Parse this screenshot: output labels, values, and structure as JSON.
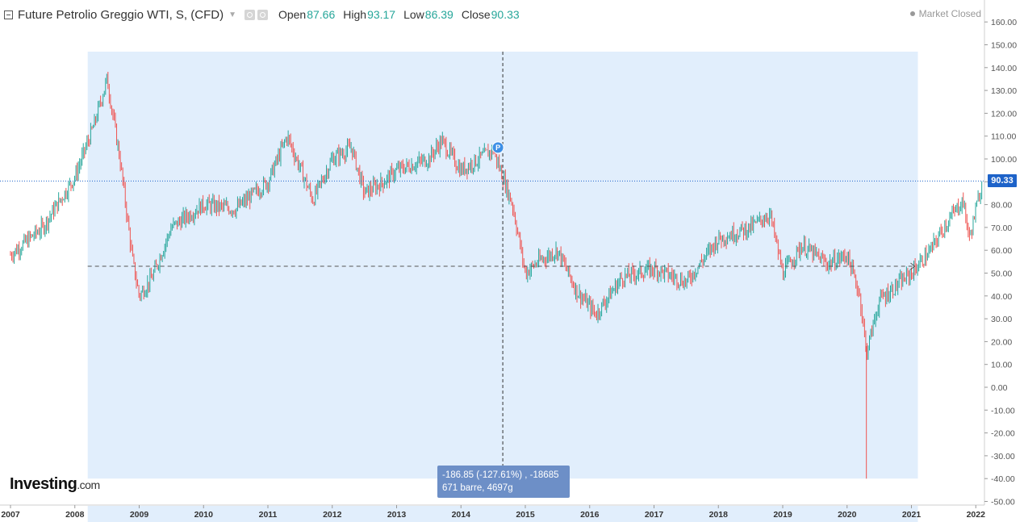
{
  "header": {
    "title": "Future Petrolio Greggio WTI, S, (CFD)",
    "ohlc": {
      "open_label": "Open",
      "open": "87.66",
      "high_label": "High",
      "high": "93.17",
      "low_label": "Low",
      "low": "86.39",
      "close_label": "Close",
      "close": "90.33"
    }
  },
  "market_status": "Market Closed",
  "logo": {
    "name": "Investing",
    "suffix": ".com"
  },
  "measure": {
    "line1": "-186.85 (-127.61%) , -18685",
    "line2": "671 barre, 4697g",
    "pin_label": "P"
  },
  "price_tag": "90.33",
  "colors": {
    "up": "#26a69a",
    "down": "#ef5350",
    "selection": "#e1eefc",
    "tag": "#1e63c9",
    "tooltip": "#6d8fc7"
  },
  "chart_data": {
    "type": "candlestick",
    "title": "Future Petrolio Greggio WTI, S, (CFD)",
    "ylim": [
      -52,
      165
    ],
    "y_ticks": [
      "160.00",
      "150.00",
      "140.00",
      "130.00",
      "120.00",
      "110.00",
      "100.00",
      "90.00",
      "80.00",
      "70.00",
      "60.00",
      "50.00",
      "40.00",
      "30.00",
      "20.00",
      "10.00",
      "0.00",
      "-10.00",
      "-20.00",
      "-30.00",
      "-40.00",
      "-50.00"
    ],
    "x_ticks": [
      "2007",
      "2008",
      "2009",
      "2010",
      "2011",
      "2012",
      "2013",
      "2014",
      "2015",
      "2016",
      "2017",
      "2018",
      "2019",
      "2020",
      "2021",
      "2022"
    ],
    "last_close": 90.33,
    "series": [
      {
        "x": [
          2007.0,
          2007.5,
          2008.0,
          2008.3,
          2008.5,
          2008.7,
          2008.9,
          2009.0,
          2009.2,
          2009.5,
          2010.0,
          2010.5,
          2011.0,
          2011.3,
          2011.7,
          2012.0,
          2012.3,
          2012.5,
          2012.8,
          2013.0,
          2013.5,
          2013.7,
          2014.0,
          2014.5,
          2014.8,
          2015.0,
          2015.2,
          2015.5,
          2015.8,
          2016.1,
          2016.5,
          2017.0,
          2017.5,
          2018.0,
          2018.5,
          2018.8,
          2019.0,
          2019.3,
          2019.7,
          2020.0,
          2020.2,
          2020.3,
          2020.5,
          2021.0,
          2021.3,
          2021.5,
          2021.8,
          2021.9,
          2022.1
        ],
        "values": [
          58,
          70,
          92,
          115,
          135,
          100,
          55,
          40,
          48,
          70,
          80,
          78,
          90,
          110,
          82,
          100,
          105,
          85,
          90,
          95,
          100,
          108,
          95,
          104,
          80,
          50,
          55,
          60,
          42,
          32,
          48,
          52,
          46,
          65,
          70,
          76,
          50,
          62,
          54,
          58,
          40,
          15,
          38,
          50,
          60,
          70,
          82,
          65,
          90
        ]
      }
    ],
    "horizontal_line": 53,
    "measure_range": [
      2008.2,
      2021.0
    ],
    "measure_y": [
      -40,
      147
    ],
    "crosshair_x": 2014.65
  }
}
